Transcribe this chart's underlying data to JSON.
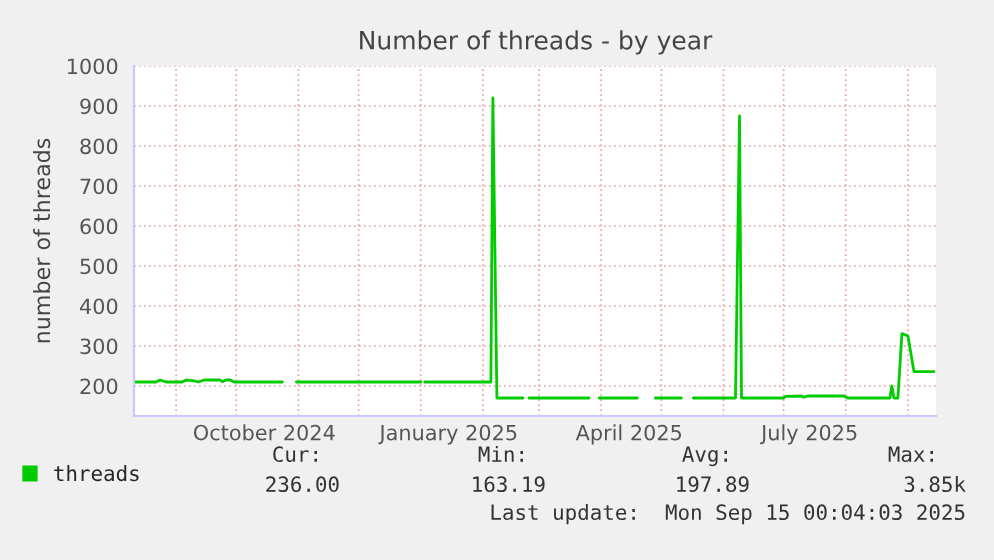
{
  "chart_data": {
    "type": "line",
    "title": "Number of threads - by year",
    "ylabel": "number of threads",
    "x": [
      "2024-08-11",
      "2024-08-22",
      "2024-08-24",
      "2024-08-27",
      "2024-09-04",
      "2024-09-06",
      "2024-09-10",
      "2024-09-12",
      "2024-09-15",
      "2024-09-23",
      "2024-09-24",
      "2024-09-26",
      "2024-09-28",
      "2024-09-30",
      "2024-10-24",
      "2024-10-28",
      "2024-10-31",
      "2025-01-01",
      "2025-01-02",
      "2025-01-03",
      "2025-02-05",
      "2025-02-06",
      "2025-02-08",
      "2025-02-21",
      "2025-02-23",
      "2025-02-24",
      "2025-03-26",
      "2025-03-28",
      "2025-03-31",
      "2025-04-19",
      "2025-04-23",
      "2025-04-28",
      "2025-05-11",
      "2025-05-13",
      "2025-05-17",
      "2025-06-07",
      "2025-06-09",
      "2025-06-10",
      "2025-07-01",
      "2025-07-02",
      "2025-07-10",
      "2025-07-11",
      "2025-07-13",
      "2025-07-31",
      "2025-08-02",
      "2025-08-23",
      "2025-08-24",
      "2025-08-25",
      "2025-08-27",
      "2025-08-29",
      "2025-09-01",
      "2025-09-04",
      "2025-09-14"
    ],
    "series": [
      {
        "name": "threads",
        "color": "#00cc00",
        "values": [
          210,
          210,
          215,
          210,
          210,
          215,
          213,
          210,
          215,
          215,
          211,
          215,
          215,
          210,
          210,
          null,
          210,
          210,
          null,
          210,
          210,
          920,
          170,
          170,
          null,
          170,
          170,
          null,
          170,
          170,
          null,
          170,
          170,
          null,
          170,
          170,
          875,
          170,
          170,
          174,
          175,
          172,
          175,
          175,
          170,
          170,
          200,
          170,
          170,
          331,
          325,
          236,
          236
        ]
      }
    ],
    "xlim": [
      "2024-08-11",
      "2025-09-15"
    ],
    "xticks": [
      {
        "value": "2024-09-01",
        "label": null
      },
      {
        "value": "2024-10-01",
        "label": null
      },
      {
        "value": "2024-10-15",
        "label": "October 2024"
      },
      {
        "value": "2024-11-01",
        "label": null
      },
      {
        "value": "2024-12-01",
        "label": null
      },
      {
        "value": "2025-01-01",
        "label": null
      },
      {
        "value": "2025-01-15",
        "label": "January 2025"
      },
      {
        "value": "2025-02-01",
        "label": null
      },
      {
        "value": "2025-03-01",
        "label": null
      },
      {
        "value": "2025-04-01",
        "label": null
      },
      {
        "value": "2025-04-15",
        "label": "April 2025"
      },
      {
        "value": "2025-05-01",
        "label": null
      },
      {
        "value": "2025-06-01",
        "label": null
      },
      {
        "value": "2025-07-01",
        "label": null
      },
      {
        "value": "2025-07-14",
        "label": "July 2025"
      },
      {
        "value": "2025-08-01",
        "label": null
      },
      {
        "value": "2025-09-01",
        "label": null
      }
    ],
    "ylim": [
      125,
      1000
    ],
    "yticks": [
      200,
      300,
      400,
      500,
      600,
      700,
      800,
      900,
      1000
    ],
    "grid": true,
    "legend": "bottom left",
    "line_style": "solid",
    "marker": "none",
    "annotations": [
      "Cur:",
      "236.00",
      "Min:",
      "163.19",
      "Avg:",
      "197.89",
      "Max:",
      "3.85k",
      "Last update:  Mon Sep 15 00:04:03 2025"
    ]
  }
}
